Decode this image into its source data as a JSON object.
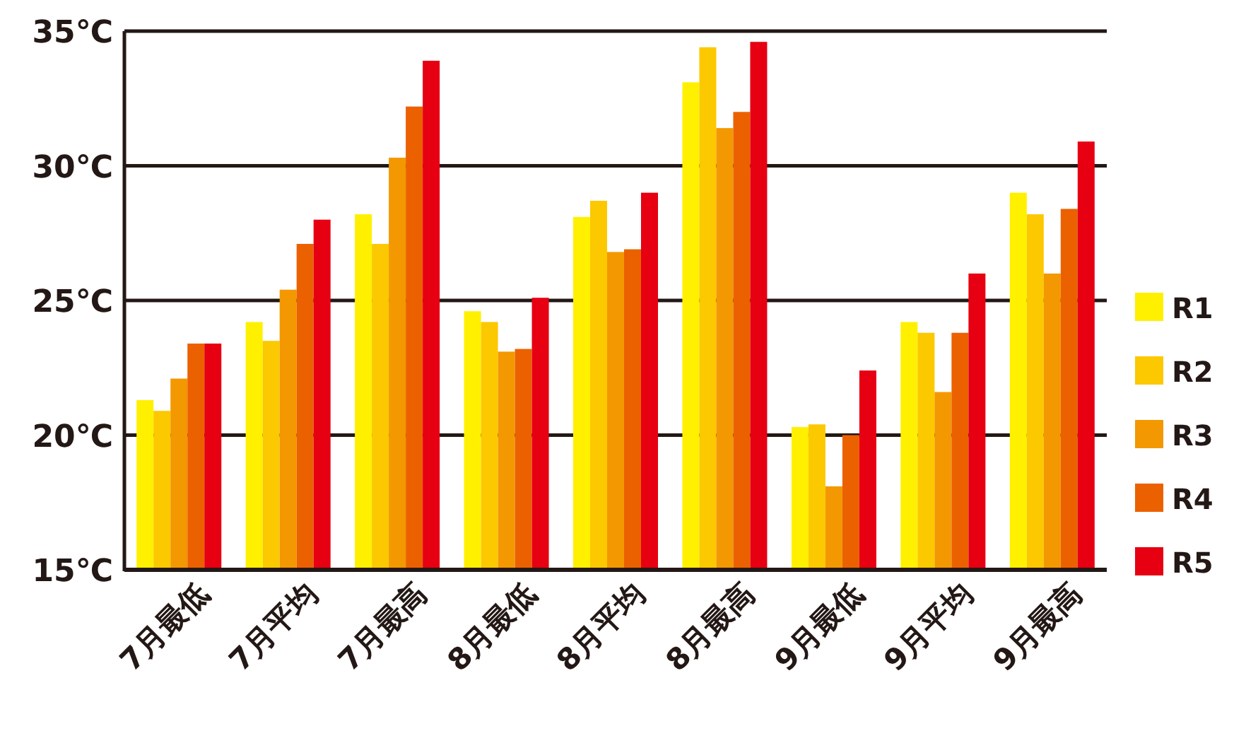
{
  "chart_data": {
    "type": "bar",
    "categories": [
      "7月最低",
      "7月平均",
      "7月最高",
      "8月最低",
      "8月平均",
      "8月最高",
      "9月最低",
      "9月平均",
      "9月最高"
    ],
    "series": [
      {
        "name": "R1",
        "color": "#fff000",
        "values": [
          21.3,
          24.2,
          28.2,
          24.6,
          28.1,
          33.1,
          20.3,
          24.2,
          29.0
        ]
      },
      {
        "name": "R2",
        "color": "#fcc800",
        "values": [
          20.9,
          23.5,
          27.1,
          24.2,
          28.7,
          34.4,
          20.4,
          23.8,
          28.2
        ]
      },
      {
        "name": "R3",
        "color": "#f39800",
        "values": [
          22.1,
          25.4,
          30.3,
          23.1,
          26.8,
          31.4,
          18.1,
          21.6,
          26.0
        ]
      },
      {
        "name": "R4",
        "color": "#eb6100",
        "values": [
          23.4,
          27.1,
          32.2,
          23.2,
          26.9,
          32.0,
          20.0,
          23.8,
          28.4
        ]
      },
      {
        "name": "R5",
        "color": "#e60012",
        "values": [
          23.4,
          28.0,
          33.9,
          25.1,
          29.0,
          34.6,
          22.4,
          26.0,
          30.9
        ]
      }
    ],
    "ylim": [
      15,
      35
    ],
    "yticks": [
      {
        "value": 15,
        "label": "15℃"
      },
      {
        "value": 20,
        "label": "20℃"
      },
      {
        "value": 25,
        "label": "25℃"
      },
      {
        "value": 30,
        "label": "30℃"
      },
      {
        "value": 35,
        "label": "35℃"
      }
    ],
    "grid": "y",
    "legend": "right"
  }
}
